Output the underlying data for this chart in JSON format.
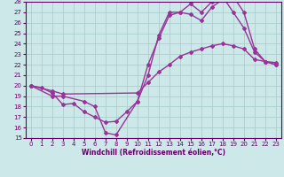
{
  "xlabel": "Windchill (Refroidissement éolien,°C)",
  "bg_color": "#cde8e8",
  "grid_color": "#aacece",
  "line_color": "#993399",
  "xlim": [
    -0.5,
    23.5
  ],
  "ylim": [
    15,
    28
  ],
  "yticks": [
    15,
    16,
    17,
    18,
    19,
    20,
    21,
    22,
    23,
    24,
    25,
    26,
    27,
    28
  ],
  "xticks": [
    0,
    1,
    2,
    3,
    4,
    5,
    6,
    7,
    8,
    9,
    10,
    11,
    12,
    13,
    14,
    15,
    16,
    17,
    18,
    19,
    20,
    21,
    22,
    23
  ],
  "curve1_x": [
    0,
    1,
    2,
    3,
    4,
    5,
    6,
    7,
    8,
    9,
    10,
    11,
    12,
    13,
    14,
    15,
    16,
    17,
    18,
    19,
    20,
    21,
    22,
    23
  ],
  "curve1_y": [
    20,
    19.8,
    19.3,
    18.2,
    18.3,
    17.5,
    17.0,
    16.5,
    16.6,
    17.5,
    18.5,
    21.0,
    24.8,
    27.0,
    27.0,
    27.8,
    27.0,
    28.0,
    28.5,
    27.0,
    25.5,
    23.2,
    22.3,
    22.0
  ],
  "curve2_x": [
    0,
    2,
    3,
    5,
    6,
    7,
    8,
    10,
    11,
    12,
    13,
    14,
    15,
    16,
    17,
    18,
    19,
    20,
    21,
    22,
    23
  ],
  "curve2_y": [
    20,
    19.0,
    19.0,
    18.5,
    18.0,
    15.5,
    15.3,
    18.5,
    22.0,
    24.5,
    26.7,
    27.0,
    26.8,
    26.2,
    27.5,
    28.2,
    28.5,
    27.0,
    23.5,
    22.3,
    22.0
  ],
  "curve3_x": [
    0,
    2,
    3,
    10,
    11,
    12,
    13,
    14,
    15,
    16,
    17,
    18,
    19,
    20,
    21,
    22,
    23
  ],
  "curve3_y": [
    20,
    19.5,
    19.2,
    19.3,
    20.3,
    21.3,
    22.0,
    22.8,
    23.2,
    23.5,
    23.8,
    24.0,
    23.8,
    23.5,
    22.5,
    22.3,
    22.2
  ],
  "marker": "D",
  "markersize": 2.0,
  "linewidth": 1.0,
  "tick_fontsize": 5,
  "label_fontsize": 5.5
}
